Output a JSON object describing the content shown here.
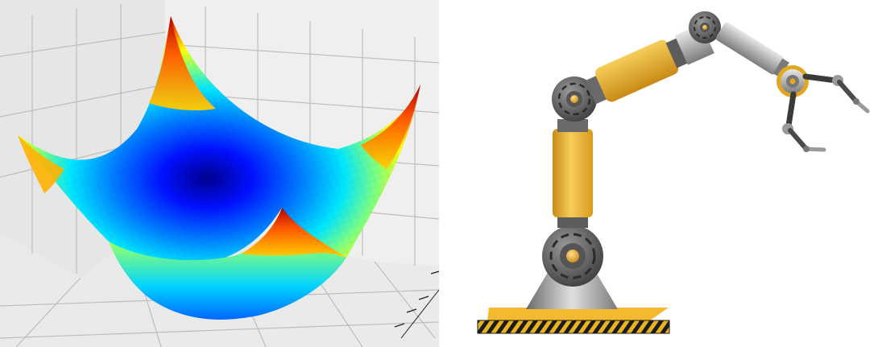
{
  "left_figure": {
    "kind": "3d-surface-plot",
    "colormap": "jet",
    "colors": [
      "#00008f",
      "#0000ff",
      "#007fff",
      "#00ffff",
      "#7fff7f",
      "#ffff00",
      "#ff7f00",
      "#ff0000",
      "#7f0000"
    ],
    "pane_color": "#ececec",
    "grid_color": "#bdbdbd"
  },
  "right_figure": {
    "kind": "robotic-arm-illustration",
    "colors": {
      "arm_yellow": "#e8a92a",
      "arm_yellow_light": "#f6cd5a",
      "metal_dark": "#4a4a4a",
      "metal_mid": "#8a8a8a",
      "metal_light": "#d7d7d7",
      "hazard_black": "#1c1c1c"
    }
  }
}
